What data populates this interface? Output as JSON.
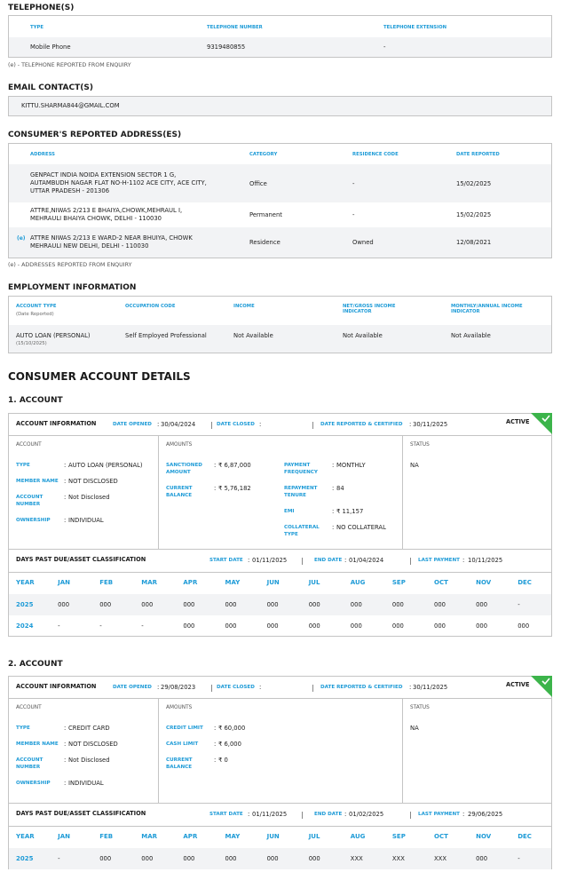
{
  "separator": ":",
  "telephone": {
    "title": "TELEPHONE(S)",
    "headers": [
      "TYPE",
      "TELEPHONE NUMBER",
      "TELEPHONE EXTENSION"
    ],
    "rows": [
      [
        "Mobile Phone",
        "9319480855",
        "-"
      ]
    ],
    "note": "(e) - TELEPHONE REPORTED FROM ENQUIRY"
  },
  "email": {
    "title": "EMAIL CONTACT(S)",
    "rows": [
      "KITTU.SHARMA844@GMAIL.COM"
    ]
  },
  "addresses": {
    "title": "CONSUMER'S REPORTED ADDRESS(ES)",
    "headers": [
      "ADDRESS",
      "CATEGORY",
      "RESIDENCE CODE",
      "DATE REPORTED"
    ],
    "rows": [
      {
        "address": [
          "GENPACT INDIA NOIDA EXTENSION SECTOR 1 G,",
          "AUTAMBUDH NAGAR FLAT NO-H-1102 ACE CITY, ACE CITY,",
          "UTTAR PRADESH - 201306"
        ],
        "category": "Office",
        "residence_code": "-",
        "date_reported": "15/02/2025"
      },
      {
        "address": [
          "ATTRE,NIWAS 2/213 E BHAIYA,CHOWK,MEHRAUL I,",
          "MEHRAULI BHAIYA CHOWK, DELHI - 110030"
        ],
        "category": "Permanent",
        "residence_code": "-",
        "date_reported": "15/02/2025"
      },
      {
        "flag": "(e)",
        "address": [
          "ATTRE NIWAS 2/213 E WARD-2 NEAR BHUIYA, CHOWK",
          "MEHRAULI NEW DELHI, DELHI - 110030"
        ],
        "category": "Residence",
        "residence_code": "Owned",
        "date_reported": "12/08/2021"
      }
    ],
    "note": "(e) - ADDRESSES REPORTED FROM ENQUIRY"
  },
  "employment": {
    "title": "EMPLOYMENT INFORMATION",
    "headers": [
      "ACCOUNT TYPE",
      "OCCUPATION CODE",
      "INCOME",
      "NET/GROSS INCOME INDICATOR",
      "MONTHLY/ANNUAL INCOME INDICATOR"
    ],
    "header_sub": "(Date Reported)",
    "row": [
      "AUTO LOAN (PERSONAL)",
      "Self Employed Professional",
      "Not Available",
      "Not Available",
      "Not Available"
    ],
    "row_sub": "(15/10/2025)"
  },
  "accounts_title": "CONSUMER ACCOUNT DETAILS",
  "accounts": [
    {
      "title": "1. ACCOUNT",
      "info_label": "ACCOUNT INFORMATION",
      "date_opened": {
        "label": "DATE OPENED",
        "value": "30/04/2024"
      },
      "date_closed": {
        "label": "DATE CLOSED"
      },
      "date_reported": {
        "label": "DATE REPORTED & CERTIFIED",
        "value": "30/11/2025"
      },
      "status_badge": "ACTIVE",
      "account": {
        "heading": "ACCOUNT",
        "fields": [
          {
            "label": "TYPE",
            "value": "AUTO LOAN (PERSONAL)"
          },
          {
            "label": "MEMBER NAME",
            "value": "NOT DISCLOSED"
          },
          {
            "label": "ACCOUNT NUMBER",
            "value": "Not Disclosed"
          },
          {
            "label": "OWNERSHIP",
            "value": "INDIVIDUAL"
          }
        ]
      },
      "amounts": {
        "heading": "AMOUNTS",
        "columns": [
          [
            {
              "label": "SANCTIONED AMOUNT",
              "value": "₹ 6,87,000"
            },
            {
              "label": "CURRENT BALANCE",
              "value": "₹ 5,76,182"
            }
          ],
          [
            {
              "label": "PAYMENT FREQUENCY",
              "value": "MONTHLY"
            },
            {
              "label": "REPAYMENT TENURE",
              "value": "84"
            },
            {
              "label": "EMI",
              "value": "₹ 11,157"
            },
            {
              "label": "COLLATERAL TYPE",
              "value": "NO COLLATERAL"
            }
          ]
        ]
      },
      "status": {
        "heading": "STATUS",
        "value": "NA"
      },
      "dpd": {
        "title": "DAYS PAST DUE/ASSET CLASSIFICATION",
        "start_date": {
          "label": "START DATE",
          "value": "01/11/2025"
        },
        "end_date": {
          "label": "END DATE",
          "value": "01/04/2024"
        },
        "last_payment": {
          "label": "LAST PAYMENT",
          "value": "10/11/2025"
        },
        "columns": [
          "YEAR",
          "JAN",
          "FEB",
          "MAR",
          "APR",
          "MAY",
          "JUN",
          "JUL",
          "AUG",
          "SEP",
          "OCT",
          "NOV",
          "DEC"
        ],
        "rows": [
          {
            "year": "2025",
            "values": [
              "000",
              "000",
              "000",
              "000",
              "000",
              "000",
              "000",
              "000",
              "000",
              "000",
              "000",
              "-"
            ]
          },
          {
            "year": "2024",
            "values": [
              "-",
              "-",
              "-",
              "000",
              "000",
              "000",
              "000",
              "000",
              "000",
              "000",
              "000",
              "000"
            ]
          }
        ]
      }
    },
    {
      "title": "2. ACCOUNT",
      "info_label": "ACCOUNT INFORMATION",
      "date_opened": {
        "label": "DATE OPENED",
        "value": "29/08/2023"
      },
      "date_closed": {
        "label": "DATE CLOSED"
      },
      "date_reported": {
        "label": "DATE REPORTED & CERTIFIED",
        "value": "30/11/2025"
      },
      "status_badge": "ACTIVE",
      "account": {
        "heading": "ACCOUNT",
        "fields": [
          {
            "label": "TYPE",
            "value": "CREDIT CARD"
          },
          {
            "label": "MEMBER NAME",
            "value": "NOT DISCLOSED"
          },
          {
            "label": "ACCOUNT NUMBER",
            "value": "Not Disclosed"
          },
          {
            "label": "OWNERSHIP",
            "value": "INDIVIDUAL"
          }
        ]
      },
      "amounts": {
        "heading": "AMOUNTS",
        "columns": [
          [
            {
              "label": "CREDIT LIMIT",
              "value": "₹ 60,000"
            },
            {
              "label": "CASH LIMIT",
              "value": "₹ 6,000"
            },
            {
              "label": "CURRENT BALANCE",
              "value": "₹ 0"
            }
          ]
        ]
      },
      "status": {
        "heading": "STATUS",
        "value": "NA"
      },
      "dpd": {
        "title": "DAYS PAST DUE/ASSET CLASSIFICATION",
        "start_date": {
          "label": "START DATE",
          "value": "01/11/2025"
        },
        "end_date": {
          "label": "END DATE",
          "value": "01/02/2025"
        },
        "last_payment": {
          "label": "LAST PAYMENT",
          "value": "29/06/2025"
        },
        "columns": [
          "YEAR",
          "JAN",
          "FEB",
          "MAR",
          "APR",
          "MAY",
          "JUN",
          "JUL",
          "AUG",
          "SEP",
          "OCT",
          "NOV",
          "DEC"
        ],
        "rows": [
          {
            "year": "2025",
            "values": [
              "-",
              "000",
              "000",
              "000",
              "000",
              "000",
              "000",
              "XXX",
              "XXX",
              "XXX",
              "000",
              "-"
            ]
          }
        ]
      }
    }
  ]
}
